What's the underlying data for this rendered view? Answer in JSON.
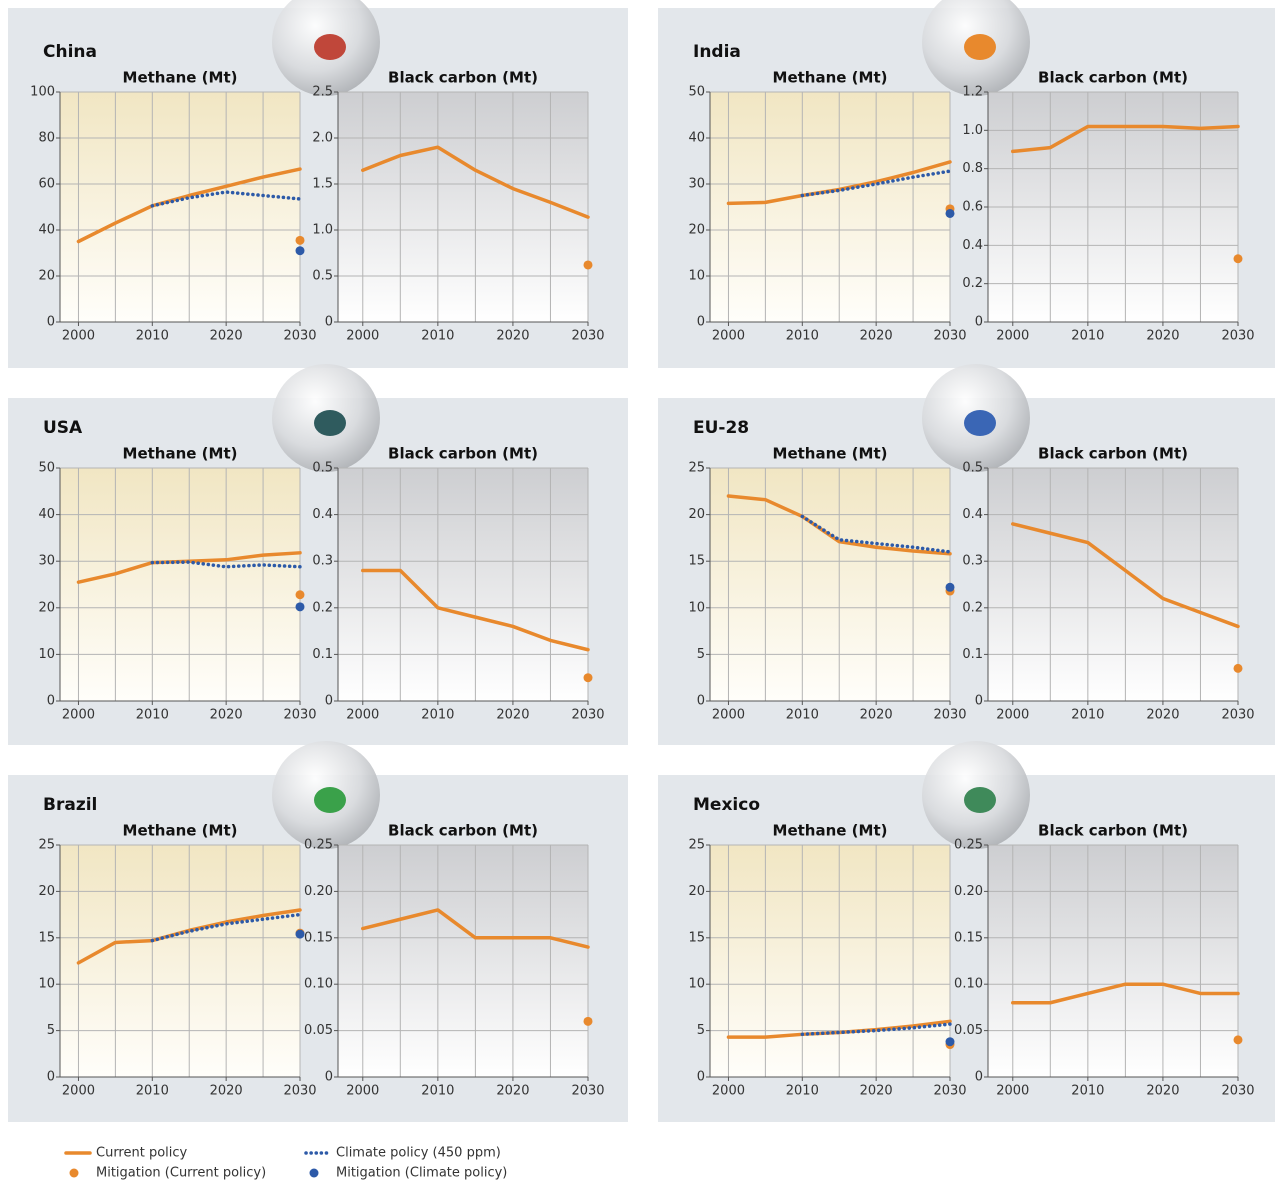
{
  "chart_data": [
    {
      "type": "line",
      "label": "China",
      "title": "Methane (Mt)",
      "x": [
        2000,
        2005,
        2010,
        2015,
        2020,
        2025,
        2030
      ],
      "xlim": [
        1997.5,
        2030
      ],
      "xticks": [
        2000,
        2010,
        2020,
        2030
      ],
      "xgrid": [
        2000,
        2005,
        2010,
        2015,
        2020,
        2025,
        2030
      ],
      "ylim": [
        0,
        100
      ],
      "yticks": [
        0,
        20,
        40,
        60,
        80,
        100
      ],
      "plot_gradient": [
        "#f1e6c3",
        "#fffefa"
      ],
      "series": [
        {
          "name": "Current policy",
          "color": "#e8892d",
          "style": "solid",
          "values": [
            35,
            43,
            50.5,
            55,
            59,
            63,
            66.5
          ]
        },
        {
          "name": "Climate policy (450 ppm)",
          "color": "#2d5aa8",
          "style": "dotted",
          "values": [
            null,
            null,
            50.5,
            54,
            56.5,
            55,
            53.5
          ]
        },
        {
          "name": "Mitigation (Current policy)",
          "color": "#e8892d",
          "style": "point",
          "values": [
            null,
            null,
            null,
            null,
            null,
            null,
            35.5
          ]
        },
        {
          "name": "Mitigation (Climate policy)",
          "color": "#2d5aa8",
          "style": "point",
          "values": [
            null,
            null,
            null,
            null,
            null,
            null,
            31
          ]
        }
      ]
    },
    {
      "type": "line",
      "title": "Black carbon (Mt)",
      "x": [
        2000,
        2005,
        2010,
        2015,
        2020,
        2025,
        2030
      ],
      "xlim": [
        1996.7,
        2030
      ],
      "xticks": [
        2000,
        2010,
        2020,
        2030
      ],
      "xgrid": [
        2000,
        2005,
        2010,
        2015,
        2020,
        2025,
        2030
      ],
      "ylim": [
        0,
        2.5
      ],
      "yticks": [
        0,
        0.5,
        {
          "value": 1,
          "label": "1.0"
        },
        1.5,
        {
          "value": 2,
          "label": "2.0"
        },
        2.5
      ],
      "plot_gradient": [
        "#cdced1",
        "#ffffff"
      ],
      "series": [
        {
          "name": "Current policy",
          "color": "#e8892d",
          "style": "solid",
          "values": [
            1.65,
            1.81,
            1.9,
            1.65,
            1.45,
            1.3,
            1.14
          ]
        },
        {
          "name": "Mitigation (Current policy)",
          "color": "#e8892d",
          "style": "point",
          "values": [
            null,
            null,
            null,
            null,
            null,
            null,
            0.62
          ]
        }
      ]
    },
    {
      "type": "line",
      "label": "India",
      "title": "Methane (Mt)",
      "x": [
        2000,
        2005,
        2010,
        2015,
        2020,
        2025,
        2030
      ],
      "xlim": [
        1997.5,
        2030
      ],
      "xticks": [
        2000,
        2010,
        2020,
        2030
      ],
      "xgrid": [
        2000,
        2005,
        2010,
        2015,
        2020,
        2025,
        2030
      ],
      "ylim": [
        0,
        50
      ],
      "yticks": [
        0,
        10,
        20,
        30,
        40,
        50
      ],
      "plot_gradient": [
        "#f1e6c3",
        "#fffefa"
      ],
      "series": [
        {
          "name": "Current policy",
          "color": "#e8892d",
          "style": "solid",
          "values": [
            25.8,
            26,
            27.5,
            28.8,
            30.5,
            32.5,
            34.8
          ]
        },
        {
          "name": "Climate policy (450 ppm)",
          "color": "#2d5aa8",
          "style": "dotted",
          "values": [
            null,
            null,
            27.5,
            28.6,
            30,
            31.5,
            32.8
          ]
        },
        {
          "name": "Mitigation (Current policy)",
          "color": "#e8892d",
          "style": "point",
          "values": [
            null,
            null,
            null,
            null,
            null,
            null,
            24.6
          ]
        },
        {
          "name": "Mitigation (Climate policy)",
          "color": "#2d5aa8",
          "style": "point",
          "values": [
            null,
            null,
            null,
            null,
            null,
            null,
            23.6
          ]
        }
      ]
    },
    {
      "type": "line",
      "title": "Black carbon (Mt)",
      "x": [
        2000,
        2005,
        2010,
        2015,
        2020,
        2025,
        2030
      ],
      "xlim": [
        1996.7,
        2030
      ],
      "xticks": [
        2000,
        2010,
        2020,
        2030
      ],
      "xgrid": [
        2000,
        2005,
        2010,
        2015,
        2020,
        2025,
        2030
      ],
      "ylim": [
        0,
        1.2
      ],
      "yticks": [
        0,
        0.2,
        0.4,
        0.6,
        0.8,
        {
          "value": 1,
          "label": "1.0"
        },
        1.2
      ],
      "plot_gradient": [
        "#cdced1",
        "#ffffff"
      ],
      "series": [
        {
          "name": "Current policy",
          "color": "#e8892d",
          "style": "solid",
          "values": [
            0.89,
            0.91,
            1.02,
            1.02,
            1.02,
            1.01,
            1.02
          ]
        },
        {
          "name": "Mitigation (Current policy)",
          "color": "#e8892d",
          "style": "point",
          "values": [
            null,
            null,
            null,
            null,
            null,
            null,
            0.33
          ]
        }
      ]
    },
    {
      "type": "line",
      "label": "USA",
      "title": "Methane (Mt)",
      "x": [
        2000,
        2005,
        2010,
        2015,
        2020,
        2025,
        2030
      ],
      "xlim": [
        1997.5,
        2030
      ],
      "xticks": [
        2000,
        2010,
        2020,
        2030
      ],
      "xgrid": [
        2000,
        2005,
        2010,
        2015,
        2020,
        2025,
        2030
      ],
      "ylim": [
        0,
        50
      ],
      "yticks": [
        0,
        10,
        20,
        30,
        40,
        50
      ],
      "plot_gradient": [
        "#f1e6c3",
        "#fffefa"
      ],
      "series": [
        {
          "name": "Current policy",
          "color": "#e8892d",
          "style": "solid",
          "values": [
            25.5,
            27.3,
            29.7,
            30,
            30.3,
            31.3,
            31.8
          ]
        },
        {
          "name": "Climate policy (450 ppm)",
          "color": "#2d5aa8",
          "style": "dotted",
          "values": [
            null,
            null,
            29.7,
            29.8,
            28.8,
            29.2,
            28.8
          ]
        },
        {
          "name": "Mitigation (Current policy)",
          "color": "#e8892d",
          "style": "point",
          "values": [
            null,
            null,
            null,
            null,
            null,
            null,
            22.8
          ]
        },
        {
          "name": "Mitigation (Climate policy)",
          "color": "#2d5aa8",
          "style": "point",
          "values": [
            null,
            null,
            null,
            null,
            null,
            null,
            20.2
          ]
        }
      ]
    },
    {
      "type": "line",
      "title": "Black carbon (Mt)",
      "x": [
        2000,
        2005,
        2010,
        2015,
        2020,
        2025,
        2030
      ],
      "xlim": [
        1996.7,
        2030
      ],
      "xticks": [
        2000,
        2010,
        2020,
        2030
      ],
      "xgrid": [
        2000,
        2005,
        2010,
        2015,
        2020,
        2025,
        2030
      ],
      "ylim": [
        0,
        0.5
      ],
      "yticks": [
        0,
        0.1,
        0.2,
        0.3,
        0.4,
        0.5
      ],
      "plot_gradient": [
        "#cdced1",
        "#ffffff"
      ],
      "series": [
        {
          "name": "Current policy",
          "color": "#e8892d",
          "style": "solid",
          "values": [
            0.28,
            0.28,
            0.2,
            0.18,
            0.16,
            0.13,
            0.11
          ]
        },
        {
          "name": "Mitigation (Current policy)",
          "color": "#e8892d",
          "style": "point",
          "values": [
            null,
            null,
            null,
            null,
            null,
            null,
            0.05
          ]
        }
      ]
    },
    {
      "type": "line",
      "label": "EU-28",
      "title": "Methane (Mt)",
      "x": [
        2000,
        2005,
        2010,
        2015,
        2020,
        2025,
        2030
      ],
      "xlim": [
        1997.5,
        2030
      ],
      "xticks": [
        2000,
        2010,
        2020,
        2030
      ],
      "xgrid": [
        2000,
        2005,
        2010,
        2015,
        2020,
        2025,
        2030
      ],
      "ylim": [
        0,
        25
      ],
      "yticks": [
        0,
        5,
        10,
        15,
        20,
        25
      ],
      "plot_gradient": [
        "#f1e6c3",
        "#fffefa"
      ],
      "series": [
        {
          "name": "Current policy",
          "color": "#e8892d",
          "style": "solid",
          "values": [
            22,
            21.6,
            19.8,
            17.1,
            16.5,
            16.1,
            15.8
          ]
        },
        {
          "name": "Climate policy (450 ppm)",
          "color": "#2d5aa8",
          "style": "dotted",
          "values": [
            null,
            null,
            19.8,
            17.3,
            16.9,
            16.5,
            16
          ]
        },
        {
          "name": "Mitigation (Current policy)",
          "color": "#e8892d",
          "style": "point",
          "values": [
            null,
            null,
            null,
            null,
            null,
            null,
            11.8
          ]
        },
        {
          "name": "Mitigation (Climate policy)",
          "color": "#2d5aa8",
          "style": "point",
          "values": [
            null,
            null,
            null,
            null,
            null,
            null,
            12.2
          ]
        }
      ]
    },
    {
      "type": "line",
      "title": "Black carbon (Mt)",
      "x": [
        2000,
        2005,
        2010,
        2015,
        2020,
        2025,
        2030
      ],
      "xlim": [
        1996.7,
        2030
      ],
      "xticks": [
        2000,
        2010,
        2020,
        2030
      ],
      "xgrid": [
        2000,
        2005,
        2010,
        2015,
        2020,
        2025,
        2030
      ],
      "ylim": [
        0,
        0.5
      ],
      "yticks": [
        0,
        0.1,
        0.2,
        0.3,
        0.4,
        0.5
      ],
      "plot_gradient": [
        "#cdced1",
        "#ffffff"
      ],
      "series": [
        {
          "name": "Current policy",
          "color": "#e8892d",
          "style": "solid",
          "values": [
            0.38,
            0.36,
            0.34,
            0.28,
            0.22,
            0.19,
            0.16
          ]
        },
        {
          "name": "Mitigation (Current policy)",
          "color": "#e8892d",
          "style": "point",
          "values": [
            null,
            null,
            null,
            null,
            null,
            null,
            0.07
          ]
        }
      ]
    },
    {
      "type": "line",
      "label": "Brazil",
      "title": "Methane (Mt)",
      "x": [
        2000,
        2005,
        2010,
        2015,
        2020,
        2025,
        2030
      ],
      "xlim": [
        1997.5,
        2030
      ],
      "xticks": [
        2000,
        2010,
        2020,
        2030
      ],
      "xgrid": [
        2000,
        2005,
        2010,
        2015,
        2020,
        2025,
        2030
      ],
      "ylim": [
        0,
        25
      ],
      "yticks": [
        0,
        5,
        10,
        15,
        20,
        25
      ],
      "plot_gradient": [
        "#f1e6c3",
        "#fffefa"
      ],
      "series": [
        {
          "name": "Current policy",
          "color": "#e8892d",
          "style": "solid",
          "values": [
            12.3,
            14.5,
            14.7,
            15.8,
            16.7,
            17.4,
            18
          ]
        },
        {
          "name": "Climate policy (450 ppm)",
          "color": "#2d5aa8",
          "style": "dotted",
          "values": [
            null,
            null,
            14.7,
            15.7,
            16.5,
            17,
            17.5
          ]
        },
        {
          "name": "Mitigation (Current policy)",
          "color": "#e8892d",
          "style": "point",
          "values": [
            null,
            null,
            null,
            null,
            null,
            null,
            15.5
          ]
        },
        {
          "name": "Mitigation (Climate policy)",
          "color": "#2d5aa8",
          "style": "point",
          "values": [
            null,
            null,
            null,
            null,
            null,
            null,
            15.4
          ]
        }
      ]
    },
    {
      "type": "line",
      "title": "Black carbon (Mt)",
      "x": [
        2000,
        2005,
        2010,
        2015,
        2020,
        2025,
        2030
      ],
      "xlim": [
        1996.7,
        2030
      ],
      "xticks": [
        2000,
        2010,
        2020,
        2030
      ],
      "xgrid": [
        2000,
        2005,
        2010,
        2015,
        2020,
        2025,
        2030
      ],
      "ylim": [
        0,
        0.25
      ],
      "yticks": [
        0,
        0.05,
        {
          "value": 0.1,
          "label": "0.10"
        },
        0.15,
        {
          "value": 0.2,
          "label": "0.20"
        },
        0.25
      ],
      "plot_gradient": [
        "#cdced1",
        "#ffffff"
      ],
      "series": [
        {
          "name": "Current policy",
          "color": "#e8892d",
          "style": "solid",
          "values": [
            0.16,
            0.17,
            0.18,
            0.15,
            0.15,
            0.15,
            0.14
          ]
        },
        {
          "name": "Mitigation (Current policy)",
          "color": "#e8892d",
          "style": "point",
          "values": [
            null,
            null,
            null,
            null,
            null,
            null,
            0.06
          ]
        }
      ]
    },
    {
      "type": "line",
      "label": "Mexico",
      "title": "Methane (Mt)",
      "x": [
        2000,
        2005,
        2010,
        2015,
        2020,
        2025,
        2030
      ],
      "xlim": [
        1997.5,
        2030
      ],
      "xticks": [
        2000,
        2010,
        2020,
        2030
      ],
      "xgrid": [
        2000,
        2005,
        2010,
        2015,
        2020,
        2025,
        2030
      ],
      "ylim": [
        0,
        25
      ],
      "yticks": [
        0,
        5,
        10,
        15,
        20,
        25
      ],
      "plot_gradient": [
        "#f1e6c3",
        "#fffefa"
      ],
      "series": [
        {
          "name": "Current policy",
          "color": "#e8892d",
          "style": "solid",
          "values": [
            4.3,
            4.3,
            4.6,
            4.8,
            5.1,
            5.5,
            6
          ]
        },
        {
          "name": "Climate policy (450 ppm)",
          "color": "#2d5aa8",
          "style": "dotted",
          "values": [
            null,
            null,
            4.6,
            4.8,
            5,
            5.3,
            5.7
          ]
        },
        {
          "name": "Mitigation (Current policy)",
          "color": "#e8892d",
          "style": "point",
          "values": [
            null,
            null,
            null,
            null,
            null,
            null,
            3.5
          ]
        },
        {
          "name": "Mitigation (Climate policy)",
          "color": "#2d5aa8",
          "style": "point",
          "values": [
            null,
            null,
            null,
            null,
            null,
            null,
            3.8
          ]
        }
      ]
    },
    {
      "type": "line",
      "title": "Black carbon (Mt)",
      "x": [
        2000,
        2005,
        2010,
        2015,
        2020,
        2025,
        2030
      ],
      "xlim": [
        1996.7,
        2030
      ],
      "xticks": [
        2000,
        2010,
        2020,
        2030
      ],
      "xgrid": [
        2000,
        2005,
        2010,
        2015,
        2020,
        2025,
        2030
      ],
      "ylim": [
        0,
        0.25
      ],
      "yticks": [
        0,
        0.05,
        {
          "value": 0.1,
          "label": "0.10"
        },
        0.15,
        {
          "value": 0.2,
          "label": "0.20"
        },
        0.25
      ],
      "plot_gradient": [
        "#cdced1",
        "#ffffff"
      ],
      "series": [
        {
          "name": "Current policy",
          "color": "#e8892d",
          "style": "solid",
          "values": [
            0.08,
            0.08,
            0.09,
            0.1,
            0.1,
            0.09,
            0.09
          ]
        },
        {
          "name": "Mitigation (Current policy)",
          "color": "#e8892d",
          "style": "point",
          "values": [
            null,
            null,
            null,
            null,
            null,
            null,
            0.04
          ]
        }
      ]
    }
  ]
}
